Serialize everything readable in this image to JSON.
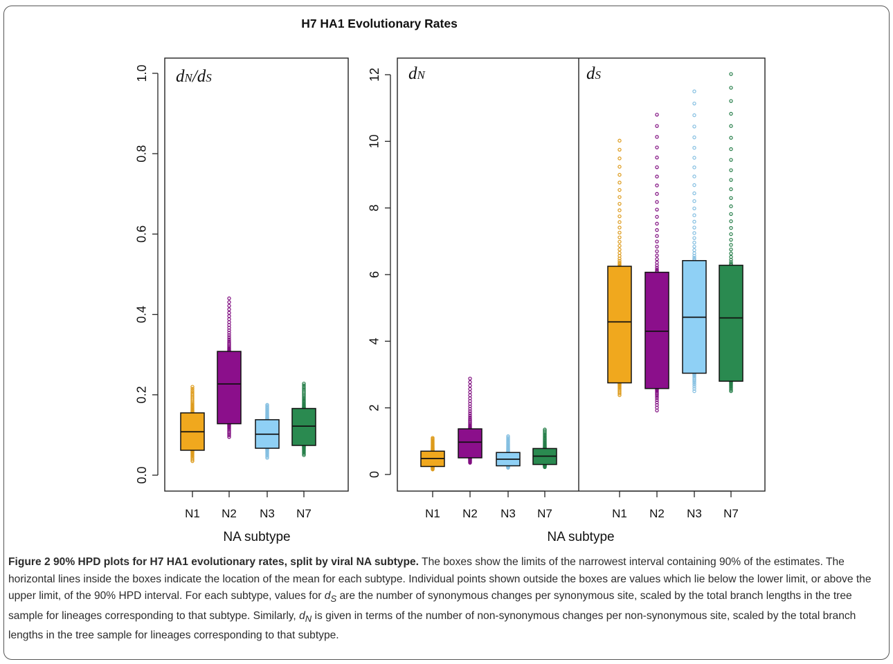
{
  "figure_title": "H7 HA1 Evolutionary Rates",
  "panels": {
    "ratio_label": {
      "d1": "d",
      "s1": "N",
      "slash": "/",
      "d2": "d",
      "s2": "S"
    },
    "dn_label": {
      "d": "d",
      "s": "N"
    },
    "ds_label": {
      "d": "d",
      "s": "S"
    }
  },
  "colors": {
    "N1": "#f0a81e",
    "N2": "#8b0f8b",
    "N3": "#8fd0f5",
    "N7": "#2a8a50"
  },
  "chart_data": [
    {
      "type": "box",
      "xlabel": "NA subtype",
      "ylabel": "",
      "ylim": [
        0,
        1
      ],
      "yticks": [
        "0.0",
        "0.2",
        "0.4",
        "0.6",
        "0.8",
        "1.0"
      ],
      "categories": [
        "N1",
        "N2",
        "N3",
        "N7"
      ],
      "series": [
        {
          "name": "N1",
          "low": 0.062,
          "mean": 0.108,
          "high": 0.155,
          "pts_min": 0.035,
          "pts_max": 0.22
        },
        {
          "name": "N2",
          "low": 0.128,
          "mean": 0.227,
          "high": 0.308,
          "pts_min": 0.095,
          "pts_max": 0.44
        },
        {
          "name": "N3",
          "low": 0.067,
          "mean": 0.102,
          "high": 0.138,
          "pts_min": 0.043,
          "pts_max": 0.175
        },
        {
          "name": "N7",
          "low": 0.074,
          "mean": 0.122,
          "high": 0.166,
          "pts_min": 0.05,
          "pts_max": 0.228
        }
      ]
    },
    {
      "type": "box",
      "xlabel": "NA subtype",
      "ylabel": "",
      "ylim": [
        0,
        12
      ],
      "yticks": [
        "0",
        "2",
        "4",
        "6",
        "8",
        "10",
        "12"
      ],
      "categories": [
        "N1",
        "N2",
        "N3",
        "N7"
      ],
      "series": [
        {
          "name": "N1",
          "low": 0.24,
          "mean": 0.48,
          "high": 0.7,
          "pts_min": 0.15,
          "pts_max": 1.1
        },
        {
          "name": "N2",
          "low": 0.5,
          "mean": 0.97,
          "high": 1.37,
          "pts_min": 0.35,
          "pts_max": 2.88
        },
        {
          "name": "N3",
          "low": 0.26,
          "mean": 0.46,
          "high": 0.66,
          "pts_min": 0.2,
          "pts_max": 1.15
        },
        {
          "name": "N7",
          "low": 0.3,
          "mean": 0.55,
          "high": 0.78,
          "pts_min": 0.22,
          "pts_max": 1.35
        }
      ]
    },
    {
      "type": "box",
      "xlabel": "NA subtype",
      "ylabel": "",
      "ylim": [
        0,
        12
      ],
      "categories": [
        "N1",
        "N2",
        "N3",
        "N7"
      ],
      "series": [
        {
          "name": "N1",
          "low": 2.75,
          "mean": 4.58,
          "high": 6.25,
          "pts_min": 2.38,
          "pts_max": 10.02
        },
        {
          "name": "N2",
          "low": 2.58,
          "mean": 4.3,
          "high": 6.07,
          "pts_min": 1.92,
          "pts_max": 10.8
        },
        {
          "name": "N3",
          "low": 3.04,
          "mean": 4.72,
          "high": 6.42,
          "pts_min": 2.5,
          "pts_max": 11.5
        },
        {
          "name": "N7",
          "low": 2.8,
          "mean": 4.7,
          "high": 6.28,
          "pts_min": 2.5,
          "pts_max": 12.02
        }
      ]
    }
  ],
  "caption": {
    "title": "Figure 2 90% HPD plots for H7 HA1 evolutionary rates, split by viral NA subtype.",
    "p1": " The boxes show the limits of the narrowest interval containing 90% of the estimates. The horizontal lines inside the boxes indicate the location of the mean for each subtype. Individual points shown outside the boxes are values which lie below the lower limit, or above the upper limit, of the 90% HPD interval. For each subtype, values for ",
    "ds_d": "d",
    "ds_s": "S",
    "p2": " are the number of synonymous changes per synonymous site, scaled by the total branch lengths in the tree sample for lineages corresponding to that subtype. Similarly, ",
    "dn_d": "d",
    "dn_s": "N",
    "p3": " is given in terms of the number of non-synonymous changes per non-synonymous site, scaled by the total branch lengths in the tree sample for lineages corresponding to that subtype."
  }
}
